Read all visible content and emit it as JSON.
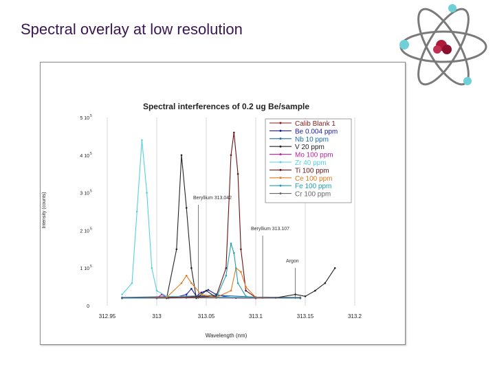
{
  "slide": {
    "title": "Spectral overlay at low resolution"
  },
  "icons": {
    "decoration": "atom-icon"
  },
  "chart_data": {
    "type": "line",
    "title": "Spectral interferences of 0.2 ug Be/sample",
    "xlabel": "Wavelength (nm)",
    "ylabel": "Intensity (counts)",
    "xlim": [
      312.95,
      313.2
    ],
    "ylim": [
      0,
      500000
    ],
    "x_ticks": [
      "312.95",
      "313",
      "313.05",
      "313.1",
      "313.15",
      "313.2"
    ],
    "y_ticks": [
      "0",
      "1 10",
      "2 10",
      "3 10",
      "4 10",
      "5 10"
    ],
    "y_tick_exponent": "5",
    "grid": "vertical",
    "legend_position": "top-right",
    "annotations": [
      {
        "label": "Beryllium 313.042",
        "x": 313.042
      },
      {
        "label": "Beryllium 313.107",
        "x": 313.107
      },
      {
        "label": "Argon",
        "x": 313.14
      }
    ],
    "series": [
      {
        "name": "Calib Blank 1",
        "color": "#8b1a1a",
        "x": [
          312.965,
          313.0,
          313.04,
          313.08,
          313.1,
          313.145
        ],
        "y": [
          20000,
          20000,
          22000,
          21000,
          20000,
          20000
        ]
      },
      {
        "name": "Be 0.004 ppm",
        "color": "#1a1aa8",
        "x": [
          312.965,
          313.01,
          313.02,
          313.03,
          313.035,
          313.04,
          313.045,
          313.052,
          313.06,
          313.068,
          313.08,
          313.145
        ],
        "y": [
          20000,
          20000,
          23000,
          30000,
          45000,
          25000,
          35000,
          42000,
          30000,
          25000,
          21000,
          20000
        ]
      },
      {
        "name": "Nb 10 ppm",
        "color": "#1a6fa8",
        "x": [
          312.965,
          313.03,
          313.06,
          313.1,
          313.145
        ],
        "y": [
          22000,
          25000,
          28000,
          23000,
          22000
        ]
      },
      {
        "name": "V 20 ppm",
        "color": "#222222",
        "x": [
          312.965,
          313.01,
          313.02,
          313.025,
          313.03,
          313.035,
          313.04,
          313.05,
          313.06,
          313.08,
          313.1,
          313.12,
          313.14,
          313.15,
          313.16,
          313.17,
          313.18
        ],
        "y": [
          20000,
          20000,
          150000,
          400000,
          260000,
          100000,
          20000,
          40000,
          22000,
          21000,
          20000,
          21000,
          30000,
          25000,
          40000,
          60000,
          100000
        ]
      },
      {
        "name": "Mo 100 ppm",
        "color": "#c020a0",
        "x": [
          312.965,
          313.0,
          313.005,
          313.012,
          313.03,
          313.1,
          313.145
        ],
        "y": [
          20000,
          20000,
          30000,
          20000,
          21000,
          20000,
          20000
        ]
      },
      {
        "name": "Zr 40 ppm",
        "color": "#55d0e0",
        "x": [
          312.965,
          312.975,
          312.98,
          312.985,
          312.99,
          312.995,
          313.0,
          313.01,
          313.1,
          313.145
        ],
        "y": [
          30000,
          60000,
          250000,
          440000,
          300000,
          100000,
          40000,
          25000,
          22000,
          20000
        ]
      },
      {
        "name": "Ti 100 ppm",
        "color": "#6a1010",
        "x": [
          312.965,
          313.06,
          313.07,
          313.075,
          313.078,
          313.082,
          313.085,
          313.09,
          313.1,
          313.145
        ],
        "y": [
          20000,
          25000,
          100000,
          400000,
          460000,
          350000,
          150000,
          40000,
          22000,
          20000
        ]
      },
      {
        "name": "Ce 100 ppm",
        "color": "#e07a20",
        "x": [
          312.965,
          313.01,
          313.025,
          313.03,
          313.035,
          313.045,
          313.06,
          313.075,
          313.08,
          313.085,
          313.09,
          313.1,
          313.145
        ],
        "y": [
          20000,
          22000,
          60000,
          80000,
          60000,
          30000,
          22000,
          40000,
          100000,
          90000,
          50000,
          22000,
          20000
        ]
      },
      {
        "name": "Fe 100 ppm",
        "color": "#1aa0b0",
        "x": [
          312.965,
          313.06,
          313.07,
          313.075,
          313.078,
          313.082,
          313.09,
          313.1,
          313.145
        ],
        "y": [
          20000,
          21000,
          80000,
          165000,
          140000,
          60000,
          25000,
          21000,
          20000
        ]
      },
      {
        "name": "Cr 100 ppm",
        "color": "#666666",
        "x": [
          312.965,
          313.1,
          313.145
        ],
        "y": [
          21000,
          21000,
          21000
        ]
      }
    ]
  }
}
